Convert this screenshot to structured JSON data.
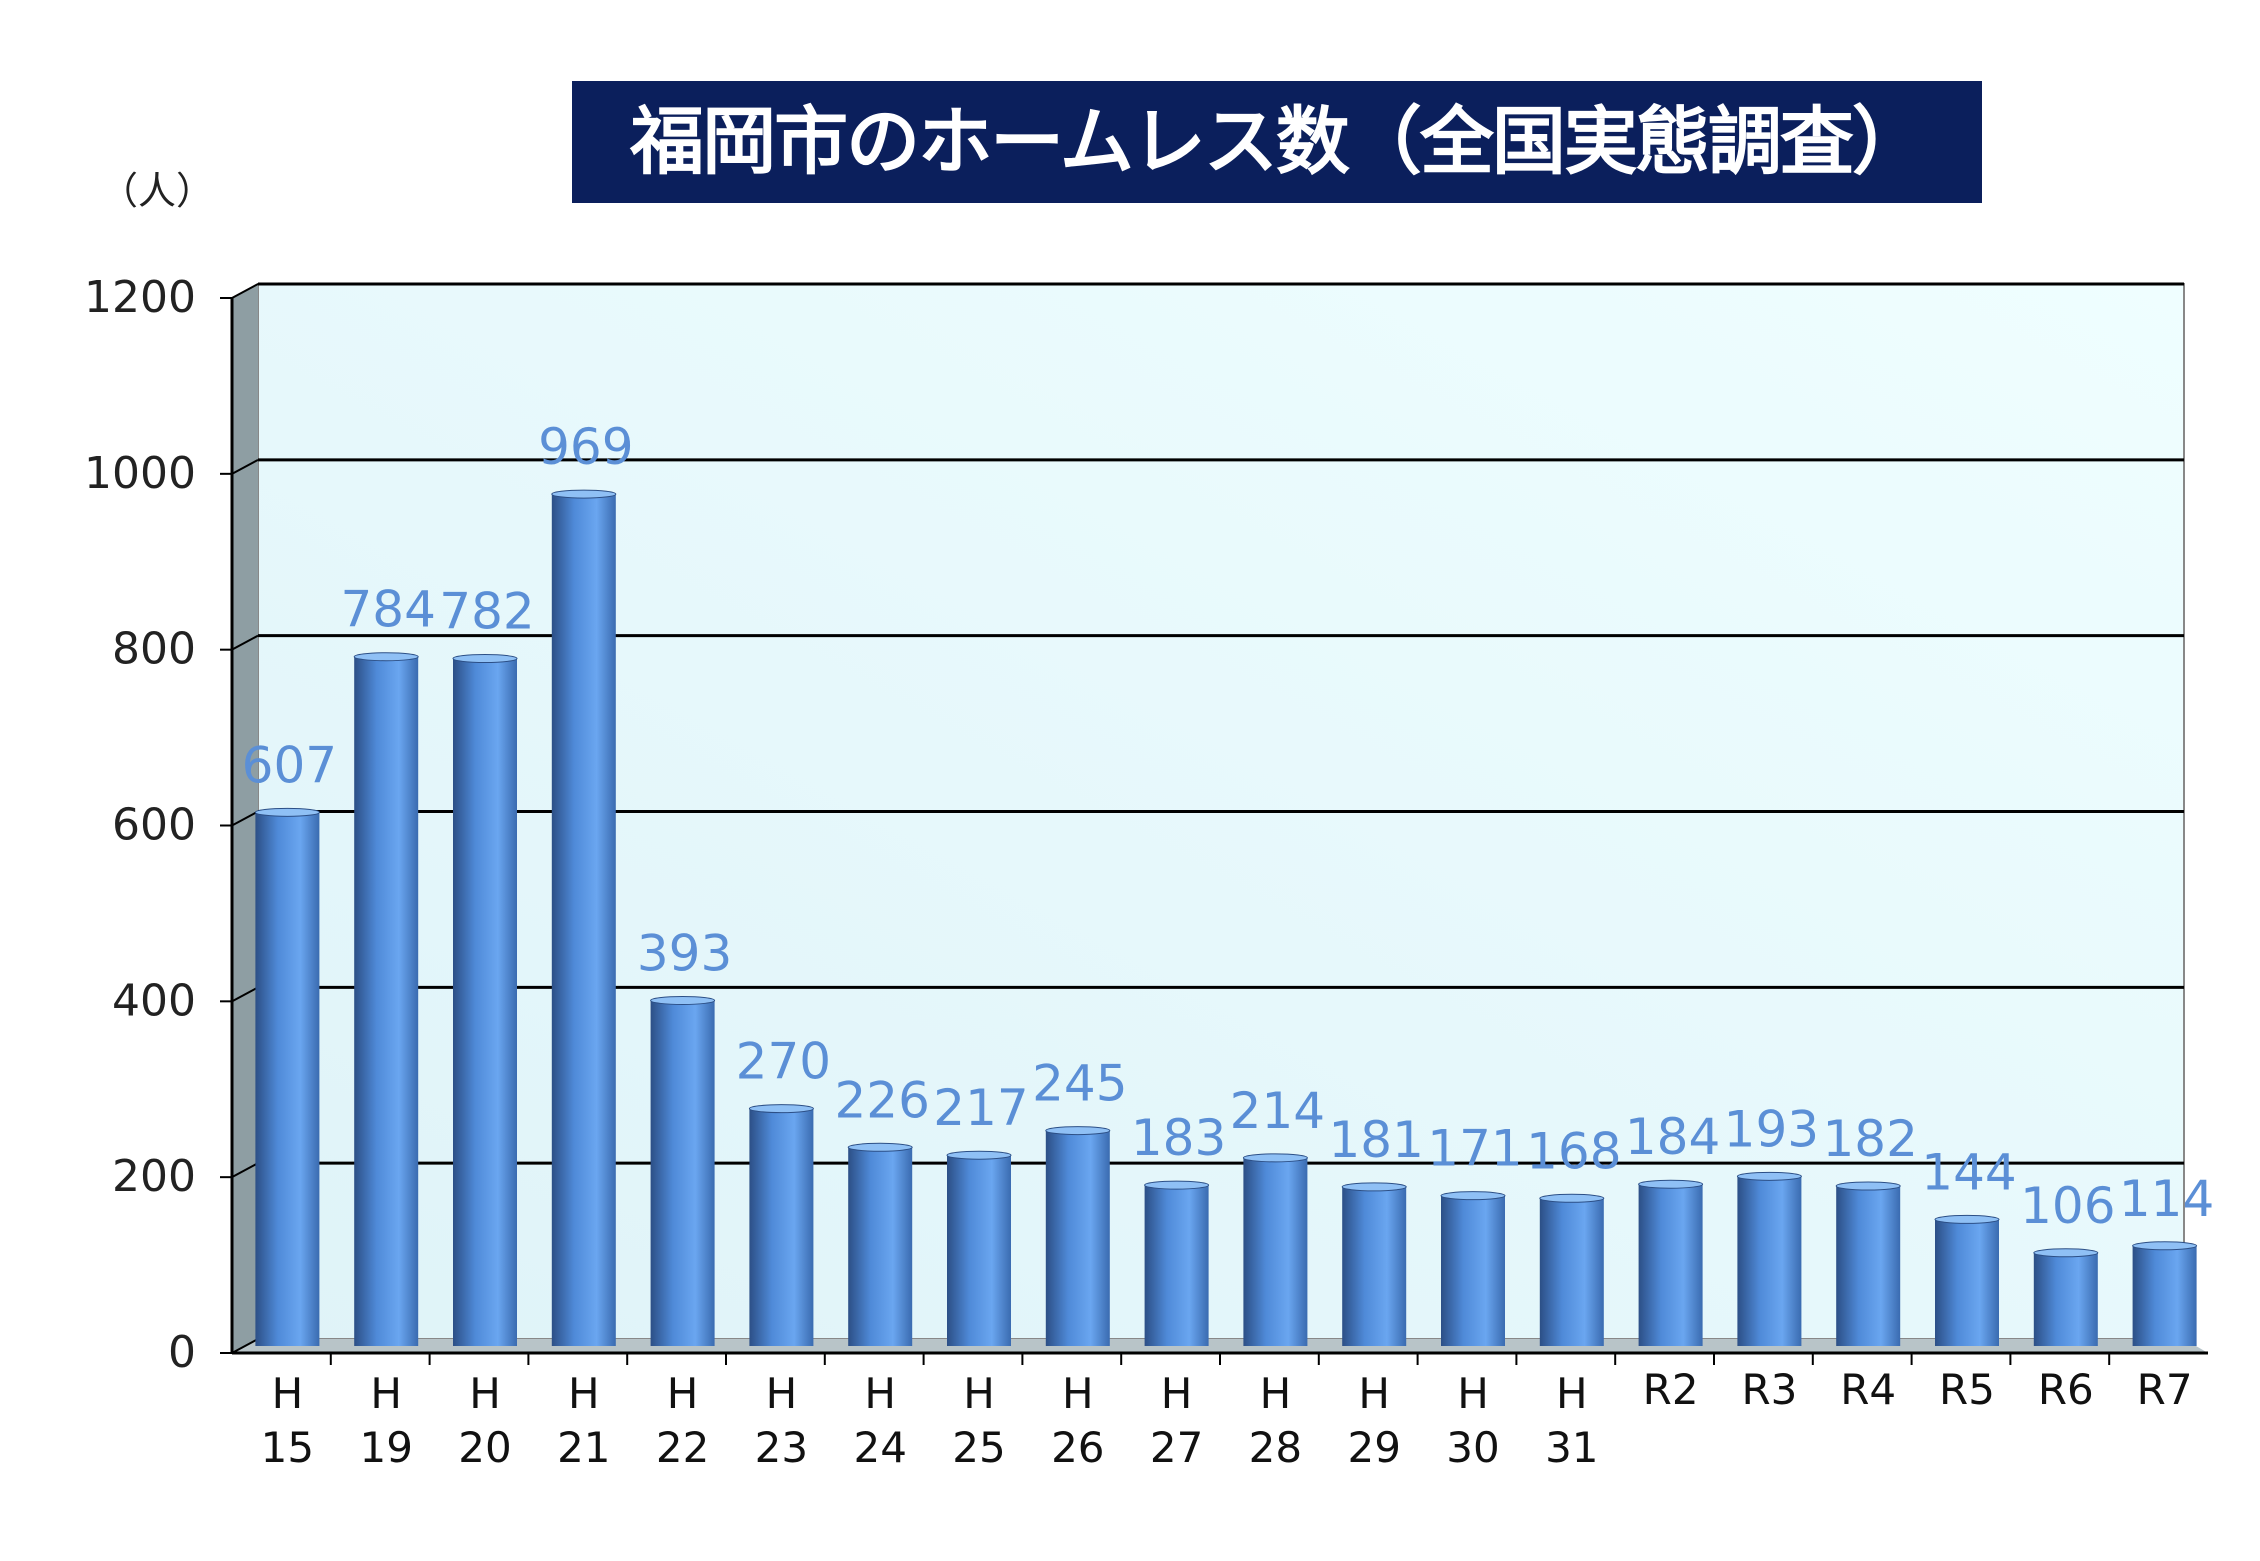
{
  "chart_data": {
    "type": "bar",
    "title": "福岡市のホームレス数（全国実態調査）",
    "ylabel": "（人）",
    "xlabel": "",
    "ylim": [
      0,
      1200
    ],
    "yticks": [
      0,
      200,
      400,
      600,
      800,
      1000,
      1200
    ],
    "grid": true,
    "categories": [
      [
        "H",
        "15"
      ],
      [
        "H",
        "19"
      ],
      [
        "H",
        "20"
      ],
      [
        "H",
        "21"
      ],
      [
        "H",
        "22"
      ],
      [
        "H",
        "23"
      ],
      [
        "H",
        "24"
      ],
      [
        "H",
        "25"
      ],
      [
        "H",
        "26"
      ],
      [
        "H",
        "27"
      ],
      [
        "H",
        "28"
      ],
      [
        "H",
        "29"
      ],
      [
        "H",
        "30"
      ],
      [
        "H",
        "31"
      ],
      [
        "R2"
      ],
      [
        "R3"
      ],
      [
        "R4"
      ],
      [
        "R5"
      ],
      [
        "R6"
      ],
      [
        "R7"
      ]
    ],
    "values": [
      607,
      784,
      782,
      969,
      393,
      270,
      226,
      217,
      245,
      183,
      214,
      181,
      171,
      168,
      184,
      193,
      182,
      144,
      106,
      114
    ],
    "colors": {
      "bar": "#4a86d6",
      "label": "#5b8fd6",
      "title_bg": "#0b1f5c"
    }
  }
}
